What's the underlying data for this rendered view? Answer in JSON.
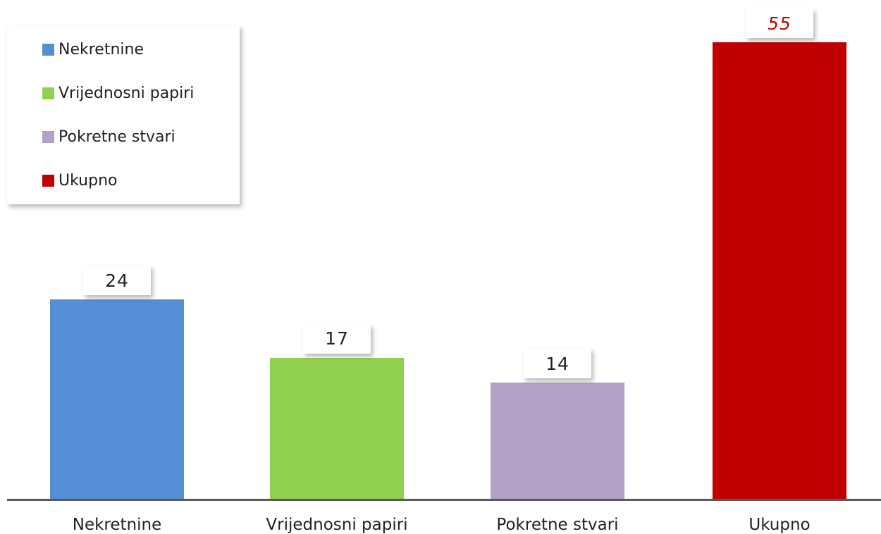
{
  "chart_data": {
    "type": "bar",
    "categories": [
      "Nekretnine",
      "Vrijednosni papiri",
      "Pokretne stvari",
      "Ukupno"
    ],
    "values": [
      24,
      17,
      14,
      55
    ],
    "colors": [
      "#558ed5",
      "#92d050",
      "#b3a2c7",
      "#c00000"
    ],
    "title": "",
    "xlabel": "",
    "ylabel": "",
    "ylim": [
      0,
      60
    ],
    "grid": false,
    "legend": {
      "placement": "top-left",
      "entries": [
        "Nekretnine",
        "Vrijednosni papiri",
        "Pokretne stvari",
        "Ukupno"
      ]
    },
    "data_labels": [
      "24",
      "17",
      "14",
      "55"
    ]
  }
}
